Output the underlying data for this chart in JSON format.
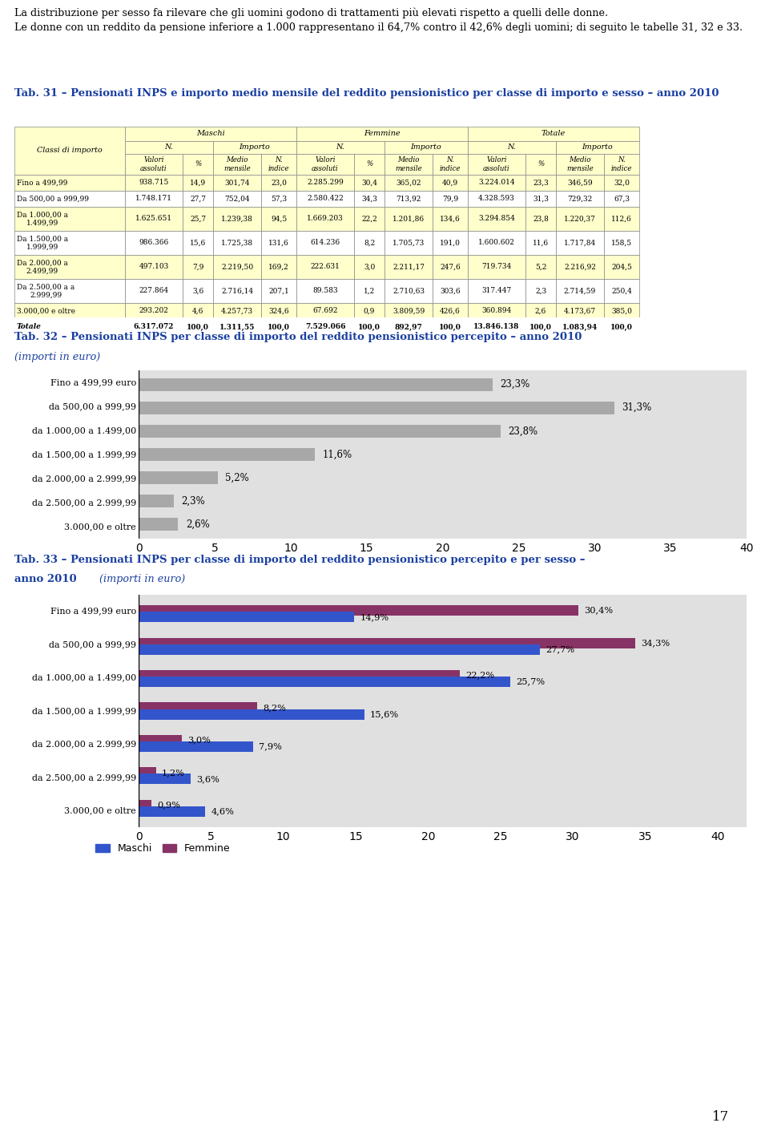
{
  "page_bg": "#ffffff",
  "intro_line1": "La distribuzione per sesso fa rilevare che gli uomini godono di trattamenti più elevati rispetto a quelli delle donne.",
  "intro_line2": "Le donne con un reddito da pensione inferiore a 1.000 rappresentano il 64,7% contro il 42,6% degli uomini; di seguito le tabelle 31, 32 e 33.",
  "tab31_title": "Tab. 31 – Pensionati INPS e importo medio mensile del reddito pensionistico per classe di importo e sesso – anno 2010",
  "tab31_header_bg": "#ffffcc",
  "tab31_classes": [
    "Fino a 499,99",
    "Da 500,00 a 999,99",
    "Da 1.000,00 a\n1.499,99",
    "Da 1.500,00 a\n1.999,99",
    "Da 2.000,00 a\n2.499,99",
    "Da 2.500,00 a a\n2.999,99",
    "3.000,00 e oltre",
    "Totale"
  ],
  "tab31_maschi": [
    [
      "938.715",
      "14,9",
      "301,74",
      "23,0"
    ],
    [
      "1.748.171",
      "27,7",
      "752,04",
      "57,3"
    ],
    [
      "1.625.651",
      "25,7",
      "1.239,38",
      "94,5"
    ],
    [
      "986.366",
      "15,6",
      "1.725,38",
      "131,6"
    ],
    [
      "497.103",
      "7,9",
      "2.219,50",
      "169,2"
    ],
    [
      "227.864",
      "3,6",
      "2.716,14",
      "207,1"
    ],
    [
      "293.202",
      "4,6",
      "4.257,73",
      "324,6"
    ],
    [
      "6.317.072",
      "100,0",
      "1.311,55",
      "100,0"
    ]
  ],
  "tab31_femmine": [
    [
      "2.285.299",
      "30,4",
      "365,02",
      "40,9"
    ],
    [
      "2.580.422",
      "34,3",
      "713,92",
      "79,9"
    ],
    [
      "1.669.203",
      "22,2",
      "1.201,86",
      "134,6"
    ],
    [
      "614.236",
      "8,2",
      "1.705,73",
      "191,0"
    ],
    [
      "222.631",
      "3,0",
      "2.211,17",
      "247,6"
    ],
    [
      "89.583",
      "1,2",
      "2.710,63",
      "303,6"
    ],
    [
      "67.692",
      "0,9",
      "3.809,59",
      "426,6"
    ],
    [
      "7.529.066",
      "100,0",
      "892,97",
      "100,0"
    ]
  ],
  "tab31_totale": [
    [
      "3.224.014",
      "23,3",
      "346,59",
      "32,0"
    ],
    [
      "4.328.593",
      "31,3",
      "729,32",
      "67,3"
    ],
    [
      "3.294.854",
      "23,8",
      "1.220,37",
      "112,6"
    ],
    [
      "1.600.602",
      "11,6",
      "1.717,84",
      "158,5"
    ],
    [
      "719.734",
      "5,2",
      "2.216,92",
      "204,5"
    ],
    [
      "317.447",
      "2,3",
      "2.714,59",
      "250,4"
    ],
    [
      "360.894",
      "2,6",
      "4.173,67",
      "385,0"
    ],
    [
      "13.846.138",
      "100,0",
      "1.083,94",
      "100,0"
    ]
  ],
  "tab32_title": "Tab. 32 – Pensionati INPS per classe di importo del reddito pensionistico percepito – anno 2010",
  "tab32_subtitle": "(importi in euro)",
  "tab32_categories": [
    "Fino a 499,99 euro",
    "da 500,00 a 999,99",
    "da 1.000,00 a 1.499,00",
    "da 1.500,00 a 1.999,99",
    "da 2.000,00 a 2.999,99",
    "da 2.500,00 a 2.999,99",
    "3.000,00 e oltre"
  ],
  "tab32_values": [
    23.3,
    31.3,
    23.8,
    11.6,
    5.2,
    2.3,
    2.6
  ],
  "tab32_labels": [
    "23,3%",
    "31,3%",
    "23,8%",
    "11,6%",
    "5,2%",
    "2,3%",
    "2,6%"
  ],
  "tab32_bar_color": "#a8a8a8",
  "tab32_bg": "#e0e0e0",
  "tab33_title": "Tab. 33 – Pensionati INPS per classe di importo del reddito pensionistico percepito e per sesso –",
  "tab33_title2": "anno 2010 ",
  "tab33_subtitle": "(importi in euro)",
  "tab33_categories": [
    "Fino a 499,99 euro",
    "da 500,00 a 999,99",
    "da 1.000,00 a 1.499,00",
    "da 1.500,00 a 1.999,99",
    "da 2.000,00 a 2.999,99",
    "da 2.500,00 a 2.999,99",
    "3.000,00 e oltre"
  ],
  "tab33_maschi": [
    14.9,
    27.7,
    25.7,
    15.6,
    7.9,
    3.6,
    4.6
  ],
  "tab33_femmine": [
    30.4,
    34.3,
    22.2,
    8.2,
    3.0,
    1.2,
    0.9
  ],
  "tab33_maschi_labels": [
    "14,9%",
    "27,7%",
    "25,7%",
    "15,6%",
    "7,9%",
    "3,6%",
    "4,6%"
  ],
  "tab33_femmine_labels": [
    "30,4%",
    "34,3%",
    "22,2%",
    "8,2%",
    "3,0%",
    "1,2%",
    "0,9%"
  ],
  "tab33_maschi_color": "#3355cc",
  "tab33_femmine_color": "#883366",
  "page_number": "17",
  "title_color": "#1a3fa0",
  "text_color": "#000000",
  "table_border_color": "#888888"
}
